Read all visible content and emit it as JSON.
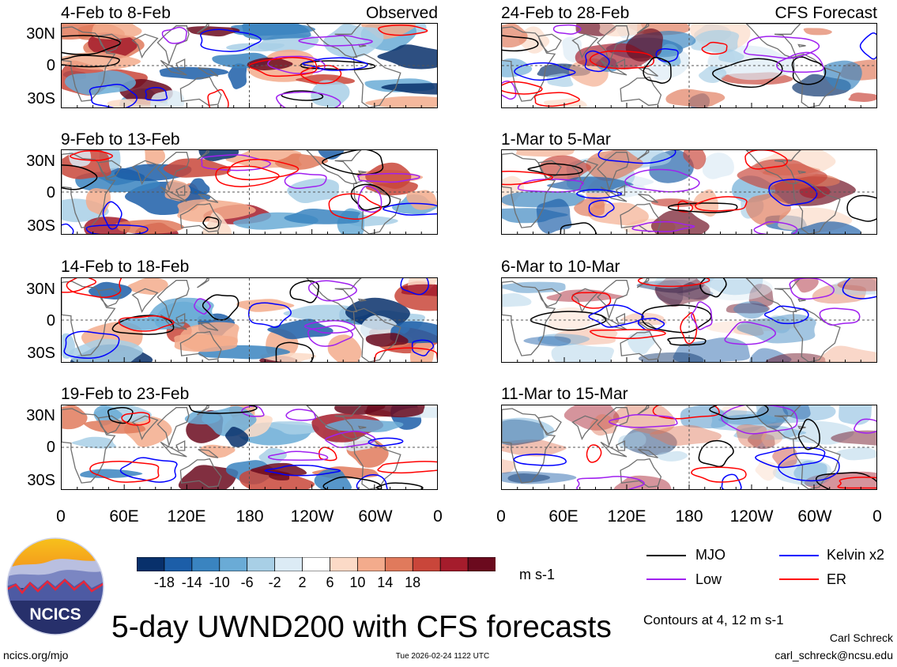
{
  "observed_tag": "Observed",
  "forecast_tag": "CFS Forecast",
  "panels_left": [
    {
      "title": "4-Feb to 8-Feb"
    },
    {
      "title": "9-Feb to 13-Feb"
    },
    {
      "title": "14-Feb to 18-Feb"
    },
    {
      "title": "19-Feb to 23-Feb"
    }
  ],
  "panels_right": [
    {
      "title": "24-Feb to 28-Feb"
    },
    {
      "title": "1-Mar to 5-Mar"
    },
    {
      "title": "6-Mar to 10-Mar"
    },
    {
      "title": "11-Mar to 15-Mar"
    }
  ],
  "lat_labels": [
    "30N",
    "0",
    "30S"
  ],
  "lon_labels": [
    "0",
    "60E",
    "120E",
    "180",
    "120W",
    "60W",
    "0"
  ],
  "colorbar": {
    "unit": "m s-1",
    "tick_labels": [
      "-18",
      "-14",
      "-10",
      "-6",
      "-2",
      "2",
      "6",
      "10",
      "14",
      "18"
    ],
    "colors": [
      "#08306b",
      "#1c5ea8",
      "#3a84c0",
      "#6aabd6",
      "#a8cfe6",
      "#dcebf5",
      "#ffffff",
      "#fbdac7",
      "#f3ab8c",
      "#e07a5c",
      "#c9463a",
      "#a51c2c",
      "#6b0a1e"
    ]
  },
  "legend": [
    {
      "label": "MJO",
      "color": "#000000"
    },
    {
      "label": "Kelvin x2",
      "color": "#0000ff"
    },
    {
      "label": "Low",
      "color": "#a020f0"
    },
    {
      "label": "ER",
      "color": "#ff0000"
    }
  ],
  "contour_note": "Contours at 4, 12 m s-1",
  "main_title": "5-day UWND200 with CFS forecasts",
  "logo_text": "NCICS",
  "author": "Carl Schreck",
  "email": "carl_schreck@ncsu.edu",
  "site": "ncics.org/mjo",
  "timestamp": "Tue 2026-02-24 1122 UTC"
}
